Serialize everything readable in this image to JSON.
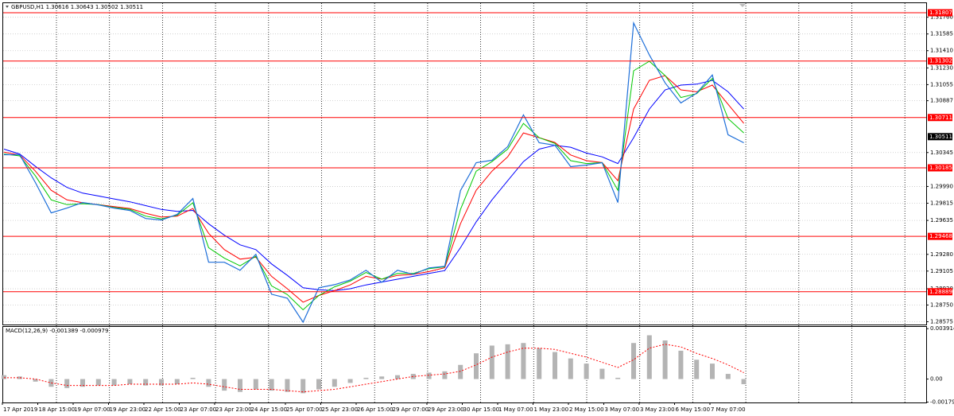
{
  "chart_data": {
    "type": "line",
    "title": "GBPUSD,H1  1.30616 1.30643 1.30502 1.30511",
    "ylim": [
      1.28546,
      1.31907
    ],
    "yticks": [
      {
        "value": 1.3176,
        "label": "1.31760"
      },
      1.31585,
      {
        "value": 1.3141,
        "label": "1.31410"
      },
      {
        "value": 1.3123,
        "label": "1.31230"
      },
      1.31055,
      1.30887,
      1.30345,
      {
        "value": 1.2999,
        "label": "1.29990"
      },
      1.29815,
      1.29635,
      {
        "value": 1.2928,
        "label": "1.29280"
      },
      1.29105,
      {
        "value": 1.2892,
        "label": "1.28920"
      },
      {
        "value": 1.2875,
        "label": "1.28750"
      },
      1.28575
    ],
    "levels": [
      1.31807,
      1.31302,
      1.30711,
      1.30185,
      1.29468,
      1.28889
    ],
    "level_color": "#ff0000",
    "current_price": 1.30511,
    "time_labels": [
      "17 Apr 2019",
      "18 Apr 15:00",
      "19 Apr 07:00",
      "19 Apr 23:00",
      "22 Apr 15:00",
      "23 Apr 07:00",
      "23 Apr 23:00",
      "24 Apr 15:00",
      "25 Apr 07:00",
      "25 Apr 23:00",
      "26 Apr 15:00",
      "29 Apr 07:00",
      "29 Apr 23:00",
      "30 Apr 15:00",
      "1 May 07:00",
      "1 May 23:00",
      "2 May 15:00",
      "3 May 07:00",
      "3 May 23:00",
      "6 May 15:00",
      "7 May 07:00"
    ],
    "series": [
      {
        "color": "#1e6fd9",
        "values": [
          1.30322,
          1.30322,
          1.3003,
          1.29714,
          1.29764,
          1.29822,
          1.29797,
          1.29764,
          1.29739,
          1.29655,
          1.29639,
          1.29697,
          1.29864,
          1.29197,
          1.29197,
          1.29113,
          1.2928,
          1.28863,
          1.28821,
          1.28571,
          1.2893,
          1.28963,
          1.29013,
          1.29113,
          1.28988,
          1.29113,
          1.29071,
          1.29138,
          1.29155,
          1.29947,
          1.30239,
          1.30264,
          1.30406,
          1.30739,
          1.30447,
          1.30422,
          1.30197,
          1.30214,
          1.30239,
          1.29822,
          1.317,
          1.31365,
          1.31073,
          1.30864,
          1.30965,
          1.31156,
          1.30531,
          1.30447
        ]
      },
      {
        "color": "#0000ff",
        "values": [
          1.3038,
          1.3033,
          1.302,
          1.3008,
          1.2998,
          1.2992,
          1.2989,
          1.2986,
          1.2983,
          1.2979,
          1.2975,
          1.2973,
          1.2974,
          1.296,
          1.2948,
          1.2938,
          1.2933,
          1.2918,
          1.2906,
          1.2893,
          1.2891,
          1.289,
          1.2892,
          1.2896,
          1.2899,
          1.2902,
          1.2905,
          1.2908,
          1.2911,
          1.2935,
          1.2962,
          1.2985,
          1.3005,
          1.3025,
          1.3038,
          1.3042,
          1.304,
          1.3034,
          1.303,
          1.3023,
          1.305,
          1.308,
          1.31,
          1.3105,
          1.3106,
          1.311,
          1.3098,
          1.308
        ]
      },
      {
        "color": "#ff0000",
        "values": [
          1.3035,
          1.3032,
          1.3015,
          1.2995,
          1.2985,
          1.2982,
          1.298,
          1.2978,
          1.2976,
          1.2971,
          1.2967,
          1.2968,
          1.2976,
          1.295,
          1.2933,
          1.2923,
          1.2925,
          1.2905,
          1.2892,
          1.2878,
          1.2885,
          1.289,
          1.2896,
          1.2905,
          1.2902,
          1.2906,
          1.2907,
          1.291,
          1.2914,
          1.296,
          1.2995,
          1.3015,
          1.303,
          1.3055,
          1.305,
          1.3045,
          1.3032,
          1.3026,
          1.3024,
          1.3005,
          1.308,
          1.311,
          1.3115,
          1.31,
          1.3098,
          1.3105,
          1.3085,
          1.3065
        ]
      },
      {
        "color": "#00c800",
        "values": [
          1.3033,
          1.3031,
          1.301,
          1.2985,
          1.298,
          1.2981,
          1.298,
          1.2977,
          1.2975,
          1.2968,
          1.2965,
          1.2969,
          1.2982,
          1.2935,
          1.2924,
          1.2916,
          1.2926,
          1.2895,
          1.2886,
          1.287,
          1.2885,
          1.2894,
          1.29,
          1.2909,
          1.2902,
          1.2908,
          1.2908,
          1.2913,
          1.2915,
          1.2975,
          1.3015,
          1.3025,
          1.3038,
          1.3065,
          1.305,
          1.3044,
          1.3026,
          1.3023,
          1.3024,
          1.2995,
          1.312,
          1.313,
          1.3115,
          1.3092,
          1.3096,
          1.3112,
          1.307,
          1.3055
        ]
      }
    ],
    "macd": {
      "title": "MACD(12,26,9) -0.001389 -0.000979",
      "ylim": [
        -0.00182,
        0.00405
      ],
      "yticks": [
        0.003914,
        {
          "value": 0,
          "label": "0.00"
        },
        -0.001791
      ],
      "histogram_color": "#b4b4b4",
      "signal_color": "#ff0000",
      "histogram": [
        0.0003,
        0.0002,
        -0.0002,
        -0.0006,
        -0.0007,
        -0.0006,
        -0.0005,
        -0.0005,
        -0.0004,
        -0.0005,
        -0.0005,
        -0.0004,
        0.0001,
        -0.0006,
        -0.0009,
        -0.001,
        -0.0008,
        -0.0009,
        -0.001,
        -0.0011,
        -0.0008,
        -0.0006,
        -0.0003,
        0.0001,
        0.0002,
        0.0003,
        0.0004,
        0.0005,
        0.0006,
        0.0011,
        0.002,
        0.0026,
        0.0027,
        0.0028,
        0.0024,
        0.0021,
        0.0016,
        0.0012,
        0.0008,
        0.0001,
        0.0028,
        0.0034,
        0.003,
        0.0022,
        0.0015,
        0.0012,
        0.0004,
        -0.0004
      ],
      "signal": [
        0.0001,
        0.0001,
        0,
        -0.0003,
        -0.0005,
        -0.0005,
        -0.0005,
        -0.0005,
        -0.0004,
        -0.0004,
        -0.0004,
        -0.0004,
        -0.0003,
        -0.0004,
        -0.0006,
        -0.0008,
        -0.0008,
        -0.0008,
        -0.0009,
        -0.001,
        -0.0009,
        -0.0008,
        -0.0006,
        -0.0004,
        -0.0002,
        0,
        0.0002,
        0.0003,
        0.0004,
        0.0006,
        0.0011,
        0.0017,
        0.0021,
        0.0024,
        0.0024,
        0.0023,
        0.002,
        0.0017,
        0.0013,
        0.0009,
        0.0015,
        0.0024,
        0.0027,
        0.0025,
        0.002,
        0.0016,
        0.0011,
        0.0005
      ]
    }
  }
}
